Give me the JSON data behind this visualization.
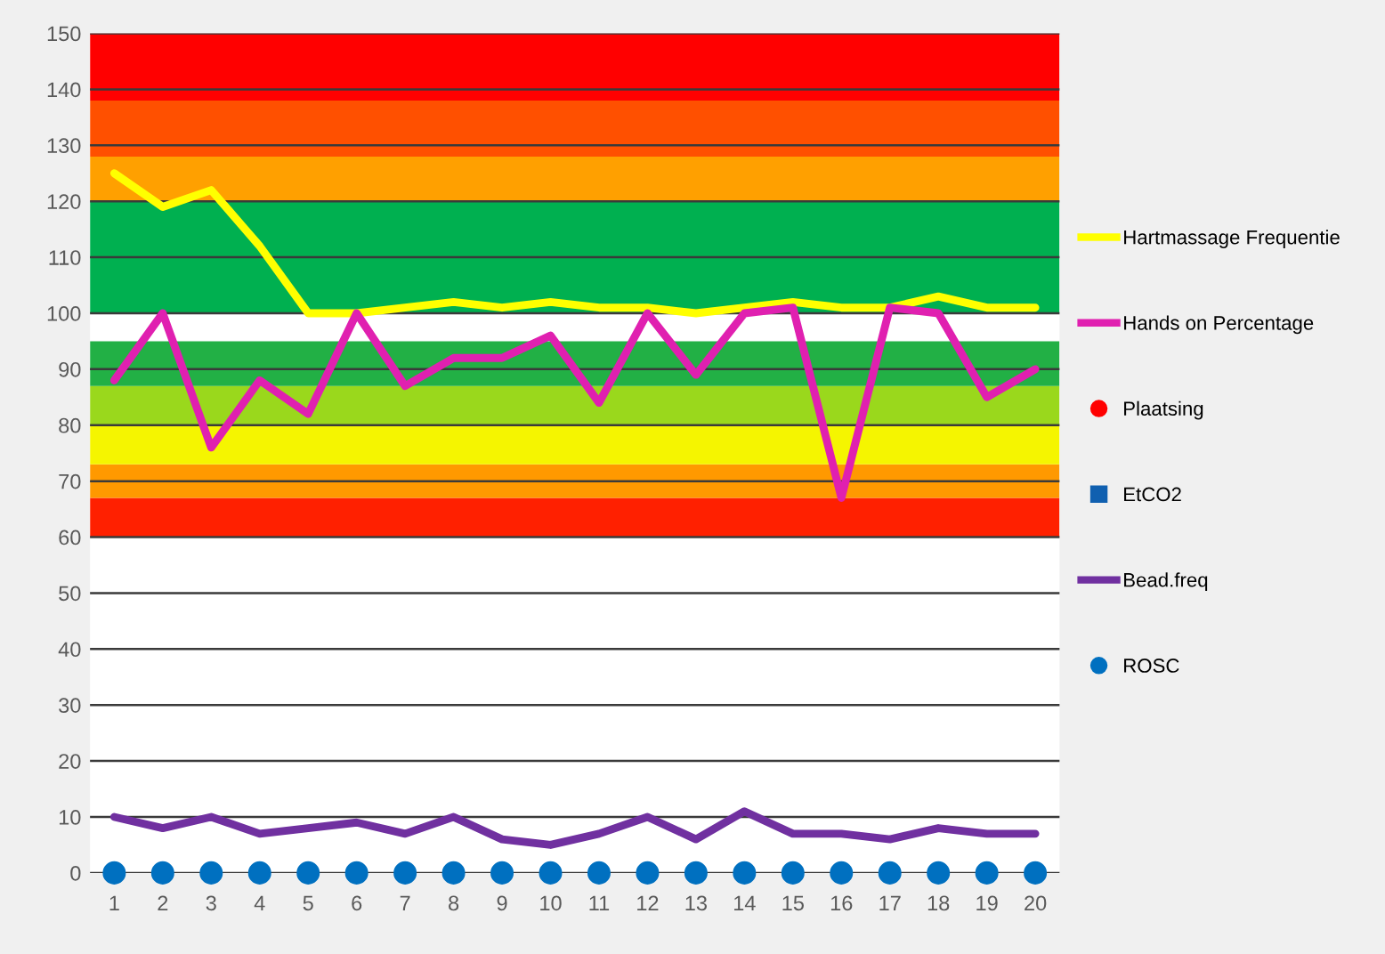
{
  "chart_data": {
    "type": "line",
    "categories": [
      "1",
      "2",
      "3",
      "4",
      "5",
      "6",
      "7",
      "8",
      "9",
      "10",
      "11",
      "12",
      "13",
      "14",
      "15",
      "16",
      "17",
      "18",
      "19",
      "20"
    ],
    "series": [
      {
        "name": "Hartmassage Frequentie",
        "color": "#ffff00",
        "values": [
          125,
          119,
          122,
          112,
          100,
          100,
          101,
          102,
          101,
          102,
          101,
          101,
          100,
          101,
          102,
          101,
          101,
          103,
          101,
          101
        ]
      },
      {
        "name": "Hands on Percentage",
        "color": "#e020b0",
        "values": [
          88,
          100,
          76,
          88,
          82,
          100,
          87,
          92,
          92,
          96,
          84,
          100,
          89,
          100,
          101,
          67,
          101,
          100,
          85,
          90
        ]
      },
      {
        "name": "Plaatsing",
        "type": "scatter",
        "marker": "circle",
        "color": "#ff0000",
        "values": [
          null,
          null,
          null,
          null,
          null,
          null,
          null,
          null,
          null,
          null,
          null,
          null,
          null,
          null,
          null,
          null,
          null,
          null,
          null,
          null
        ]
      },
      {
        "name": "EtCO2",
        "type": "scatter",
        "marker": "square",
        "color": "#1060b0",
        "values": [
          null,
          null,
          null,
          null,
          null,
          null,
          null,
          null,
          null,
          null,
          null,
          null,
          null,
          null,
          null,
          null,
          null,
          null,
          null,
          null
        ]
      },
      {
        "name": "Bead.freq",
        "color": "#7030a0",
        "values": [
          10,
          8,
          10,
          7,
          8,
          9,
          7,
          10,
          6,
          5,
          7,
          10,
          6,
          11,
          7,
          7,
          6,
          8,
          7,
          7
        ]
      },
      {
        "name": "ROSC",
        "type": "scatter",
        "marker": "circle",
        "color": "#0070c0",
        "values": [
          0,
          0,
          0,
          0,
          0,
          0,
          0,
          0,
          0,
          0,
          0,
          0,
          0,
          0,
          0,
          0,
          0,
          0,
          0,
          0
        ]
      }
    ],
    "ylim": [
      0,
      150
    ],
    "yticks": [
      0,
      10,
      20,
      30,
      40,
      50,
      60,
      70,
      80,
      90,
      100,
      110,
      120,
      130,
      140,
      150
    ],
    "bands": [
      {
        "axis": "y",
        "from": 60,
        "to": 67,
        "color": "#ff2000"
      },
      {
        "axis": "y",
        "from": 67,
        "to": 73,
        "color": "#ff9900"
      },
      {
        "axis": "y",
        "from": 73,
        "to": 80,
        "color": "#f5f500"
      },
      {
        "axis": "y",
        "from": 80,
        "to": 87,
        "color": "#9ad81c"
      },
      {
        "axis": "y",
        "from": 87,
        "to": 95,
        "color": "#22b045"
      },
      {
        "axis": "y",
        "from": 100,
        "to": 120,
        "color": "#00b050"
      },
      {
        "axis": "y",
        "from": 120,
        "to": 128,
        "color": "#ffa000"
      },
      {
        "axis": "y",
        "from": 128,
        "to": 138,
        "color": "#ff5000"
      },
      {
        "axis": "y",
        "from": 138,
        "to": 150,
        "color": "#ff0000"
      }
    ],
    "grid": "y",
    "legend": "right"
  }
}
